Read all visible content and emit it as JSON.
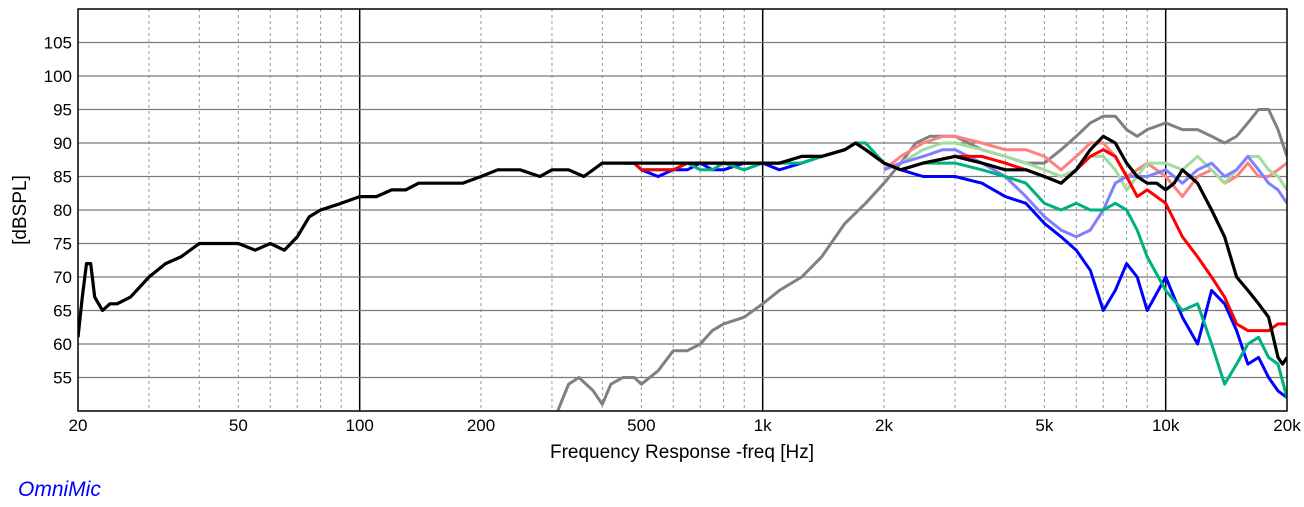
{
  "chart_data": {
    "type": "line",
    "title": "",
    "xlabel": "Frequency Response -freq [Hz]",
    "ylabel": "[dBSPL]",
    "x_scale": "log",
    "xlim": [
      20,
      20000
    ],
    "ylim": [
      50,
      110
    ],
    "x_ticks": [
      {
        "value": 20,
        "label": "20"
      },
      {
        "value": 50,
        "label": "50"
      },
      {
        "value": 100,
        "label": "100"
      },
      {
        "value": 200,
        "label": "200"
      },
      {
        "value": 500,
        "label": "500"
      },
      {
        "value": 1000,
        "label": "1k"
      },
      {
        "value": 2000,
        "label": "2k"
      },
      {
        "value": 5000,
        "label": "5k"
      },
      {
        "value": 10000,
        "label": "10k"
      },
      {
        "value": 20000,
        "label": "20k"
      }
    ],
    "y_ticks": [
      55,
      60,
      65,
      70,
      75,
      80,
      85,
      90,
      95,
      100,
      105
    ],
    "grid": true,
    "series": [
      {
        "color": "#808080",
        "x": [
          310,
          330,
          350,
          380,
          400,
          420,
          450,
          480,
          500,
          550,
          600,
          650,
          700,
          750,
          800,
          900,
          1000,
          1100,
          1250,
          1400,
          1600,
          1800,
          2000,
          2200,
          2400,
          2600,
          3000,
          3500,
          4000,
          4500,
          5000,
          5500,
          6000,
          6500,
          7000,
          7500,
          8000,
          8500,
          9000,
          10000,
          11000,
          12000,
          13000,
          14000,
          15000,
          16000,
          17000,
          18000,
          19000,
          20000
        ],
        "y": [
          50,
          54,
          55,
          53,
          51,
          54,
          55,
          55,
          54,
          56,
          59,
          59,
          60,
          62,
          63,
          64,
          66,
          68,
          70,
          73,
          78,
          81,
          84,
          87,
          90,
          91,
          91,
          89,
          88,
          87,
          87,
          89,
          91,
          93,
          94,
          94,
          92,
          91,
          92,
          93,
          92,
          92,
          91,
          90,
          91,
          93,
          95,
          95,
          92,
          88
        ]
      },
      {
        "color": "#ff8080",
        "x": [
          2000,
          2200,
          2500,
          2800,
          3000,
          3500,
          4000,
          4500,
          5000,
          5500,
          6000,
          6500,
          7000,
          7500,
          8000,
          8500,
          9000,
          10000,
          11000,
          12000,
          13000,
          14000,
          15000,
          16000,
          17000,
          18000,
          19000,
          20000
        ],
        "y": [
          86,
          88,
          90,
          91,
          91,
          90,
          89,
          89,
          88,
          86,
          88,
          90,
          90,
          88,
          85,
          86,
          87,
          85,
          82,
          85,
          86,
          84,
          85,
          87,
          85,
          85,
          86,
          87
        ]
      },
      {
        "color": "#a0dca0",
        "x": [
          2000,
          2200,
          2500,
          2800,
          3000,
          3500,
          4000,
          4500,
          5000,
          5500,
          6000,
          6500,
          7000,
          7500,
          8000,
          8500,
          9000,
          10000,
          11000,
          12000,
          13000,
          14000,
          15000,
          16000,
          17000,
          18000,
          19000,
          20000
        ],
        "y": [
          86,
          87,
          89,
          90,
          90,
          89,
          88,
          87,
          86,
          85,
          86,
          88,
          88,
          86,
          83,
          85,
          87,
          87,
          86,
          88,
          86,
          84,
          86,
          88,
          88,
          86,
          85,
          83
        ]
      },
      {
        "color": "#8080ff",
        "x": [
          2000,
          2200,
          2500,
          2800,
          3000,
          3500,
          4000,
          4500,
          5000,
          5500,
          6000,
          6500,
          7000,
          7500,
          8000,
          8500,
          9000,
          10000,
          11000,
          12000,
          13000,
          14000,
          15000,
          16000,
          17000,
          18000,
          19000,
          20000
        ],
        "y": [
          86,
          87,
          88,
          89,
          89,
          87,
          85,
          82,
          79,
          77,
          76,
          77,
          80,
          84,
          85,
          85,
          85,
          86,
          84,
          86,
          87,
          85,
          86,
          88,
          86,
          84,
          83,
          81
        ]
      },
      {
        "color": "#0000ff",
        "x": [
          450,
          480,
          500,
          550,
          600,
          650,
          700,
          750,
          800,
          900,
          1000,
          1100,
          1250,
          1400,
          1600,
          1700,
          1800,
          2000,
          2200,
          2500,
          3000,
          3500,
          4000,
          4500,
          5000,
          5500,
          6000,
          6500,
          7000,
          7500,
          8000,
          8500,
          9000,
          10000,
          11000,
          12000,
          13000,
          14000,
          15000,
          16000,
          17000,
          18000,
          19000,
          20000
        ],
        "y": [
          87,
          87,
          86,
          85,
          86,
          86,
          87,
          86,
          86,
          87,
          87,
          86,
          87,
          88,
          89,
          90,
          89,
          87,
          86,
          85,
          85,
          84,
          82,
          81,
          78,
          76,
          74,
          71,
          65,
          68,
          72,
          70,
          65,
          70,
          64,
          60,
          68,
          66,
          62,
          57,
          58,
          55,
          53,
          52
        ]
      },
      {
        "color": "#00b080",
        "x": [
          450,
          480,
          500,
          550,
          600,
          650,
          700,
          750,
          800,
          900,
          1000,
          1100,
          1250,
          1400,
          1600,
          1700,
          1800,
          2000,
          2200,
          2500,
          3000,
          3500,
          4000,
          4500,
          5000,
          5500,
          6000,
          6500,
          7000,
          7500,
          8000,
          8500,
          9000,
          10000,
          11000,
          12000,
          13000,
          14000,
          15000,
          16000,
          17000,
          18000,
          19000,
          20000
        ],
        "y": [
          87,
          87,
          86,
          86,
          86,
          87,
          86,
          86,
          87,
          86,
          87,
          87,
          87,
          88,
          89,
          90,
          90,
          87,
          86,
          87,
          87,
          86,
          85,
          84,
          81,
          80,
          81,
          80,
          80,
          81,
          80,
          77,
          73,
          68,
          65,
          66,
          60,
          54,
          57,
          60,
          61,
          58,
          57,
          52
        ]
      },
      {
        "color": "#ff0000",
        "x": [
          450,
          480,
          500,
          550,
          600,
          650,
          700,
          750,
          800,
          900,
          1000,
          1100,
          1250,
          1400,
          1600,
          1700,
          1800,
          2000,
          2200,
          2500,
          3000,
          3500,
          4000,
          4500,
          5000,
          5500,
          6000,
          6500,
          7000,
          7500,
          8000,
          8500,
          9000,
          10000,
          11000,
          12000,
          13000,
          14000,
          15000,
          16000,
          17000,
          18000,
          19000,
          20000
        ],
        "y": [
          87,
          87,
          86,
          86,
          86,
          87,
          87,
          87,
          87,
          87,
          87,
          87,
          88,
          88,
          89,
          90,
          89,
          87,
          86,
          87,
          88,
          88,
          87,
          86,
          85,
          84,
          86,
          88,
          89,
          88,
          85,
          82,
          83,
          81,
          76,
          73,
          70,
          67,
          63,
          62,
          62,
          62,
          63,
          63
        ]
      },
      {
        "color": "#000000",
        "x": [
          20,
          20.5,
          21,
          21.5,
          22,
          23,
          24,
          25,
          27,
          30,
          33,
          36,
          40,
          45,
          50,
          55,
          60,
          65,
          70,
          75,
          80,
          90,
          100,
          110,
          120,
          130,
          140,
          160,
          180,
          200,
          220,
          250,
          280,
          300,
          330,
          360,
          400,
          450,
          500,
          600,
          700,
          800,
          900,
          1000,
          1100,
          1250,
          1400,
          1600,
          1700,
          1800,
          2000,
          2200,
          2500,
          3000,
          3500,
          4000,
          4500,
          5000,
          5500,
          6000,
          6500,
          7000,
          7500,
          8000,
          8500,
          9000,
          9500,
          10000,
          10500,
          11000,
          11500,
          12000,
          13000,
          14000,
          15000,
          16000,
          17000,
          18000,
          19000,
          19500,
          20000
        ],
        "y": [
          61,
          67,
          72,
          72,
          67,
          65,
          66,
          66,
          67,
          70,
          72,
          73,
          75,
          75,
          75,
          74,
          75,
          74,
          76,
          79,
          80,
          81,
          82,
          82,
          83,
          83,
          84,
          84,
          84,
          85,
          86,
          86,
          85,
          86,
          86,
          85,
          87,
          87,
          87,
          87,
          87,
          87,
          87,
          87,
          87,
          88,
          88,
          89,
          90,
          89,
          87,
          86,
          87,
          88,
          87,
          86,
          86,
          85,
          84,
          86,
          89,
          91,
          90,
          87,
          85,
          84,
          84,
          83,
          84,
          86,
          85,
          84,
          80,
          76,
          70,
          68,
          66,
          64,
          58,
          57,
          58
        ]
      }
    ]
  },
  "watermark": {
    "text": "OmniMic"
  }
}
